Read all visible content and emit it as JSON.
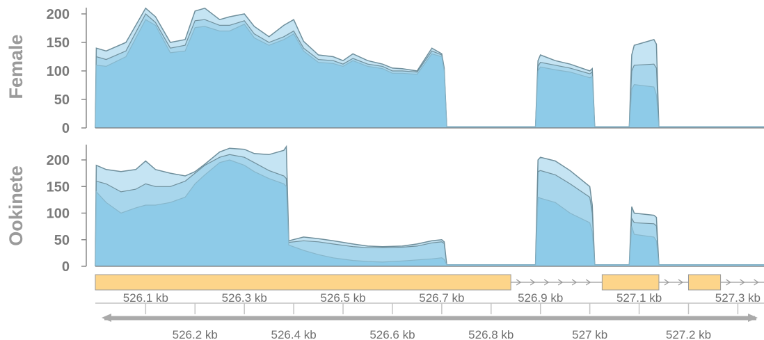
{
  "chart_data": [
    {
      "type": "area",
      "ylabel": "Female",
      "ylim": [
        0,
        200
      ],
      "yticks": [
        "200",
        "150",
        "100",
        "50",
        "0"
      ],
      "x_unit": "kb",
      "xlim": [
        525.998,
        527.353
      ],
      "series_colors": [
        "#c5e4f3",
        "#a8d6ec",
        "#8ecbe8"
      ],
      "x": [
        525.998,
        526.0,
        526.02,
        526.06,
        526.1,
        526.12,
        526.15,
        526.18,
        526.2,
        526.22,
        526.25,
        526.27,
        526.3,
        526.32,
        526.35,
        526.38,
        526.4,
        526.42,
        526.45,
        526.48,
        526.5,
        526.52,
        526.55,
        526.58,
        526.6,
        526.62,
        526.65,
        526.68,
        526.7,
        526.705,
        526.71,
        526.76,
        526.8,
        526.88,
        526.89,
        526.895,
        526.9,
        526.93,
        526.96,
        527.0,
        527.005,
        527.01,
        527.05,
        527.07,
        527.08,
        527.085,
        527.09,
        527.13,
        527.135,
        527.14,
        527.2,
        527.25,
        527.3,
        527.353
      ],
      "series": [
        {
          "values": [
            0,
            140,
            135,
            150,
            210,
            195,
            150,
            155,
            205,
            210,
            190,
            195,
            200,
            178,
            160,
            180,
            190,
            152,
            128,
            125,
            118,
            130,
            118,
            112,
            105,
            104,
            100,
            140,
            130,
            105,
            2,
            2,
            2,
            2,
            2,
            118,
            128,
            118,
            112,
            100,
            104,
            2,
            2,
            2,
            2,
            128,
            145,
            155,
            147,
            2,
            2,
            2,
            2,
            2
          ]
        },
        {
          "values": [
            0,
            125,
            120,
            135,
            200,
            185,
            140,
            145,
            188,
            190,
            180,
            180,
            188,
            165,
            150,
            160,
            170,
            140,
            120,
            118,
            112,
            122,
            112,
            108,
            100,
            100,
            98,
            135,
            128,
            102,
            2,
            2,
            2,
            2,
            2,
            108,
            115,
            110,
            105,
            95,
            98,
            2,
            2,
            2,
            2,
            100,
            110,
            112,
            105,
            2,
            2,
            2,
            2,
            2
          ]
        },
        {
          "values": [
            0,
            110,
            108,
            125,
            190,
            180,
            132,
            135,
            176,
            178,
            170,
            170,
            182,
            158,
            145,
            155,
            165,
            135,
            115,
            113,
            108,
            118,
            108,
            104,
            96,
            96,
            94,
            130,
            125,
            100,
            2,
            2,
            2,
            2,
            2,
            100,
            107,
            102,
            98,
            88,
            90,
            2,
            2,
            2,
            2,
            68,
            76,
            72,
            58,
            2,
            2,
            2,
            2,
            2
          ]
        }
      ]
    },
    {
      "type": "area",
      "ylabel": "Ookinete",
      "ylim": [
        0,
        200
      ],
      "yticks": [
        "200",
        "150",
        "100",
        "50",
        "0"
      ],
      "x_unit": "kb",
      "xlim": [
        525.998,
        527.353
      ],
      "series_colors": [
        "#c5e4f3",
        "#a8d6ec",
        "#8ecbe8"
      ],
      "x": [
        525.998,
        526.0,
        526.02,
        526.05,
        526.08,
        526.1,
        526.12,
        526.15,
        526.18,
        526.2,
        526.22,
        526.25,
        526.27,
        526.3,
        526.32,
        526.35,
        526.38,
        526.385,
        526.39,
        526.42,
        526.45,
        526.48,
        526.52,
        526.55,
        526.58,
        526.62,
        526.65,
        526.68,
        526.7,
        526.705,
        526.71,
        526.76,
        526.8,
        526.88,
        526.89,
        526.895,
        526.9,
        526.93,
        526.96,
        527.0,
        527.005,
        527.01,
        527.05,
        527.07,
        527.08,
        527.085,
        527.09,
        527.13,
        527.135,
        527.14,
        527.2,
        527.25,
        527.3,
        527.353
      ],
      "series": [
        {
          "values": [
            0,
            190,
            182,
            178,
            182,
            198,
            182,
            175,
            170,
            178,
            192,
            215,
            222,
            220,
            212,
            210,
            218,
            225,
            48,
            55,
            52,
            48,
            42,
            38,
            37,
            38,
            42,
            48,
            50,
            46,
            3,
            3,
            3,
            3,
            3,
            200,
            205,
            198,
            180,
            150,
            115,
            3,
            3,
            3,
            3,
            112,
            100,
            96,
            92,
            3,
            3,
            3,
            3,
            3
          ]
        },
        {
          "values": [
            0,
            160,
            155,
            140,
            145,
            155,
            150,
            150,
            160,
            175,
            190,
            205,
            210,
            205,
            195,
            180,
            170,
            165,
            45,
            48,
            46,
            42,
            37,
            35,
            35,
            36,
            38,
            44,
            46,
            43,
            3,
            3,
            3,
            3,
            3,
            178,
            180,
            172,
            155,
            130,
            100,
            3,
            3,
            3,
            3,
            90,
            82,
            80,
            76,
            3,
            3,
            3,
            3,
            3
          ]
        },
        {
          "values": [
            0,
            140,
            120,
            100,
            110,
            115,
            115,
            120,
            130,
            155,
            172,
            195,
            200,
            190,
            178,
            165,
            155,
            150,
            40,
            30,
            22,
            16,
            11,
            9,
            8,
            10,
            12,
            14,
            16,
            13,
            3,
            3,
            3,
            3,
            3,
            130,
            128,
            120,
            100,
            82,
            65,
            3,
            3,
            3,
            3,
            75,
            60,
            55,
            48,
            3,
            3,
            3,
            3,
            3
          ]
        }
      ]
    },
    {
      "type": "gene_track",
      "feature_color": "#fdd58a",
      "exons": [
        [
          525.998,
          526.84
        ],
        [
          527.025,
          527.14
        ],
        [
          527.2,
          527.265
        ]
      ],
      "introns": [
        [
          526.84,
          527.025
        ],
        [
          527.14,
          527.2
        ],
        [
          527.265,
          527.353
        ]
      ],
      "strand": "+"
    },
    {
      "type": "axis",
      "tick_labels_upper": [
        "526.1 kb",
        "526.3 kb",
        "526.5 kb",
        "526.7 kb",
        "526.9 kb",
        "527.1 kb",
        "527.3 kb"
      ],
      "tick_labels_lower": [
        "526.2 kb",
        "526.4 kb",
        "526.6 kb",
        "526.8 kb",
        "527 kb",
        "527.2 kb"
      ],
      "tick_values_upper": [
        526.1,
        526.3,
        526.5,
        526.7,
        526.9,
        527.1,
        527.3
      ],
      "tick_values_lower": [
        526.2,
        526.4,
        526.6,
        526.8,
        527.0,
        527.2
      ]
    }
  ]
}
